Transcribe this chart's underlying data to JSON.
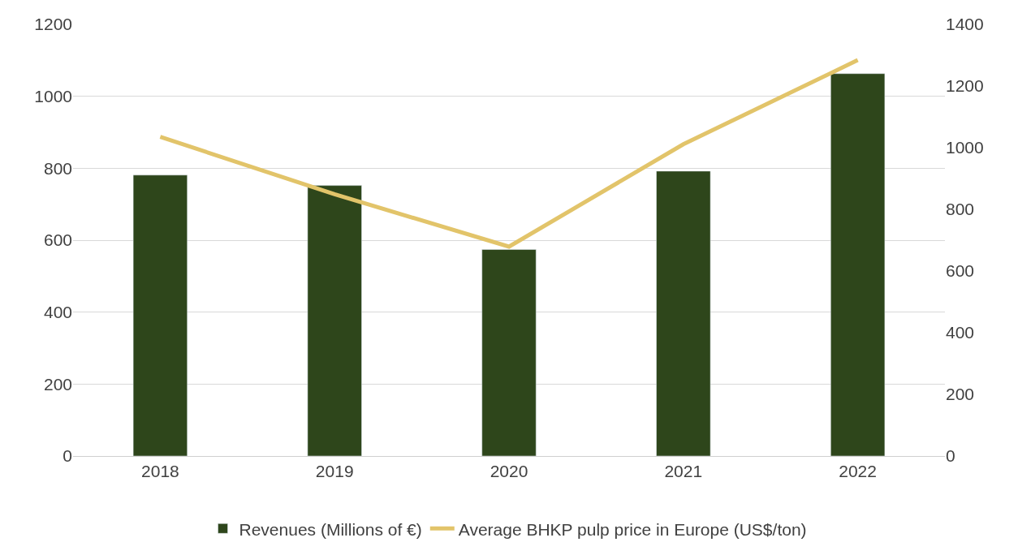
{
  "chart_data": {
    "type": "bar",
    "categories": [
      "2018",
      "2019",
      "2020",
      "2021",
      "2022"
    ],
    "series": [
      {
        "name": "Revenues (Millions of €)",
        "color": "#2e461b",
        "values": [
          781,
          752,
          574,
          792,
          1063
        ]
      },
      {
        "name": "Average BHKP pulp price in Europe (US$/ton)",
        "color": "#e2c46a",
        "type": "line",
        "axis": "y2",
        "values": [
          1035,
          849,
          679,
          1011,
          1284
        ]
      }
    ],
    "ylim": [
      0,
      1200
    ],
    "yticks": [
      0,
      200,
      400,
      600,
      800,
      1000,
      1200
    ],
    "y2lim": [
      0,
      1400
    ],
    "y2ticks": [
      0,
      200,
      400,
      600,
      800,
      1000,
      1200,
      1400
    ],
    "grid": "y",
    "legend": "bottom",
    "marker": "none",
    "line_style": "solid"
  }
}
